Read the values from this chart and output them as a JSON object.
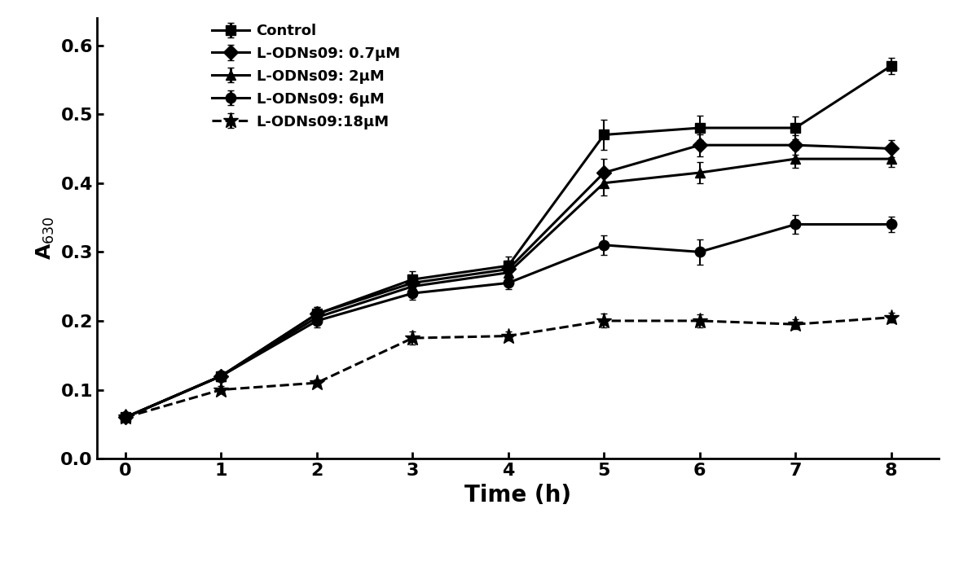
{
  "x": [
    0,
    1,
    2,
    3,
    4,
    5,
    6,
    7,
    8
  ],
  "series": [
    {
      "key": "Control",
      "y": [
        0.06,
        0.12,
        0.21,
        0.26,
        0.28,
        0.47,
        0.48,
        0.48,
        0.57
      ],
      "yerr": [
        0.003,
        0.007,
        0.01,
        0.012,
        0.013,
        0.022,
        0.018,
        0.016,
        0.012
      ],
      "marker": "s",
      "linestyle": "-",
      "label": "Control"
    },
    {
      "key": "0.7uM",
      "y": [
        0.06,
        0.12,
        0.21,
        0.255,
        0.275,
        0.415,
        0.455,
        0.455,
        0.45
      ],
      "yerr": [
        0.003,
        0.007,
        0.01,
        0.01,
        0.012,
        0.02,
        0.016,
        0.014,
        0.012
      ],
      "marker": "D",
      "linestyle": "-",
      "label": "L-ODNs09: 0.7μM"
    },
    {
      "key": "2uM",
      "y": [
        0.06,
        0.12,
        0.205,
        0.25,
        0.27,
        0.4,
        0.415,
        0.435,
        0.435
      ],
      "yerr": [
        0.003,
        0.007,
        0.009,
        0.009,
        0.011,
        0.018,
        0.015,
        0.013,
        0.012
      ],
      "marker": "^",
      "linestyle": "-",
      "label": "L-ODNs09: 2μM"
    },
    {
      "key": "6uM",
      "y": [
        0.06,
        0.12,
        0.2,
        0.24,
        0.255,
        0.31,
        0.3,
        0.34,
        0.34
      ],
      "yerr": [
        0.003,
        0.006,
        0.009,
        0.009,
        0.009,
        0.014,
        0.018,
        0.014,
        0.011
      ],
      "marker": "o",
      "linestyle": "-",
      "label": "L-ODNs09: 6μM"
    },
    {
      "key": "18uM",
      "y": [
        0.06,
        0.1,
        0.11,
        0.175,
        0.178,
        0.2,
        0.2,
        0.195,
        0.205
      ],
      "yerr": [
        0.003,
        0.005,
        0.005,
        0.009,
        0.007,
        0.01,
        0.009,
        0.007,
        0.007
      ],
      "marker": "*",
      "linestyle": "--",
      "label": "L-ODNs09:18μM"
    }
  ],
  "xlabel": "Time (h)",
  "ylabel": "A$_{630}$",
  "xlim": [
    -0.3,
    8.5
  ],
  "ylim": [
    0,
    0.64
  ],
  "yticks": [
    0,
    0.1,
    0.2,
    0.3,
    0.4,
    0.5,
    0.6
  ],
  "xticks": [
    0,
    1,
    2,
    3,
    4,
    5,
    6,
    7,
    8
  ],
  "color": "#000000",
  "linewidth": 2.2,
  "markersize": 9,
  "star_markersize": 14,
  "capsize": 3,
  "elinewidth": 1.5,
  "legend_fontsize": 13,
  "xlabel_fontsize": 20,
  "ylabel_fontsize": 18,
  "tick_fontsize": 16,
  "spine_linewidth": 2.0,
  "figsize": [
    11.88,
    7.22
  ],
  "dpi": 100
}
